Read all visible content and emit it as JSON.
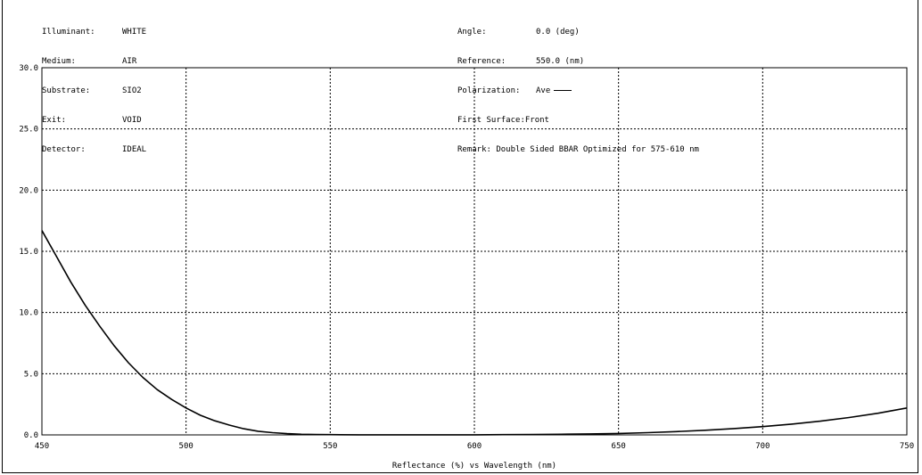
{
  "header": {
    "left": [
      {
        "key": "Illuminant:",
        "value": "WHITE"
      },
      {
        "key": "Medium:",
        "value": "AIR"
      },
      {
        "key": "Substrate:",
        "value": "SIO2"
      },
      {
        "key": "Exit:",
        "value": "VOID"
      },
      {
        "key": "Detector:",
        "value": "IDEAL"
      }
    ],
    "right": {
      "angle_key": "Angle:",
      "angle_value": "0.0 (deg)",
      "reference_key": "Reference:",
      "reference_value": "550.0 (nm)",
      "polarization_key": "Polarization:",
      "polarization_value": "Ave",
      "first_surface": "First Surface:Front",
      "remark": "Remark: Double Sided BBAR Optimized for 575-610 nm"
    }
  },
  "chart_data": {
    "type": "line",
    "xlabel": "Reflectance (%)  vs  Wavelength (nm)",
    "xlim": [
      450,
      750
    ],
    "ylim": [
      0,
      30
    ],
    "xticks": [
      "450",
      "500",
      "550",
      "600",
      "650",
      "700",
      "750"
    ],
    "yticks": [
      "0.0",
      "5.0",
      "10.0",
      "15.0",
      "20.0",
      "25.0",
      "30.0"
    ],
    "grid": true,
    "series": [
      {
        "name": "Ave",
        "color": "#000000",
        "x": [
          450,
          455,
          460,
          465,
          470,
          475,
          480,
          485,
          490,
          495,
          500,
          505,
          510,
          515,
          520,
          525,
          530,
          535,
          540,
          545,
          550,
          560,
          570,
          580,
          590,
          600,
          610,
          620,
          630,
          640,
          650,
          660,
          670,
          680,
          690,
          700,
          710,
          720,
          730,
          740,
          750
        ],
        "y": [
          16.7,
          14.6,
          12.5,
          10.6,
          8.9,
          7.3,
          5.9,
          4.7,
          3.7,
          2.9,
          2.2,
          1.6,
          1.15,
          0.8,
          0.5,
          0.3,
          0.18,
          0.1,
          0.05,
          0.03,
          0.02,
          0.01,
          0.01,
          0.01,
          0.01,
          0.01,
          0.02,
          0.03,
          0.05,
          0.08,
          0.12,
          0.18,
          0.27,
          0.38,
          0.52,
          0.68,
          0.88,
          1.12,
          1.42,
          1.77,
          2.2
        ]
      }
    ]
  }
}
